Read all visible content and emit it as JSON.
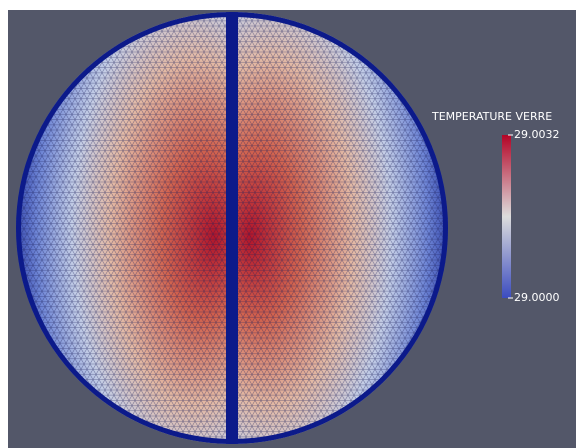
{
  "colorbar": {
    "title": "TEMPERATURE VERRE",
    "range": [
      29.0,
      29.0032
    ],
    "ticks": [
      {
        "value": 29.0032,
        "label": "29.0032"
      },
      {
        "value": 29.0,
        "label": "29.0000"
      }
    ]
  }
}
